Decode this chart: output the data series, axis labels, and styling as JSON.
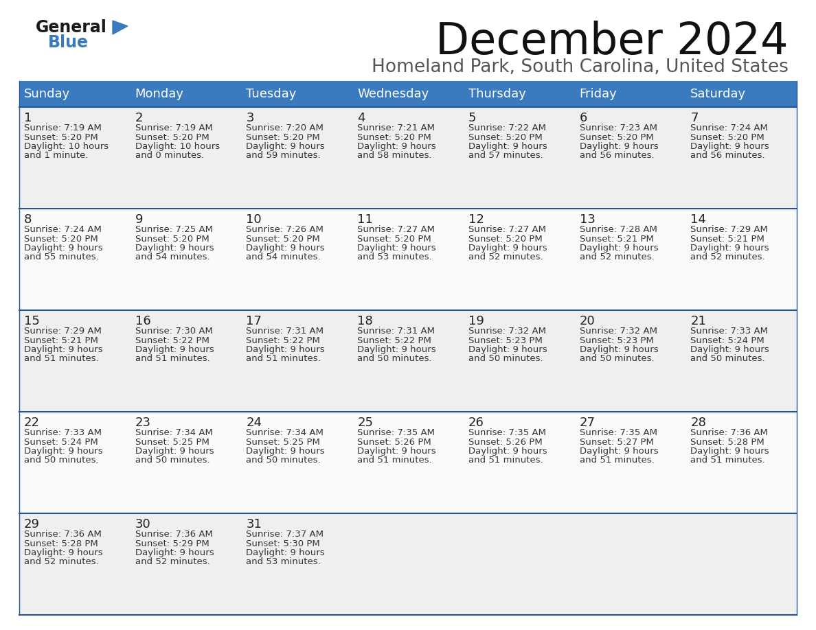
{
  "title": "December 2024",
  "subtitle": "Homeland Park, South Carolina, United States",
  "header_bg_color": "#3A7BBF",
  "header_text_color": "#FFFFFF",
  "cell_bg_color_odd": "#EFEFEF",
  "cell_bg_color_even": "#FAFAFA",
  "row_line_color": "#2255A0",
  "days_of_week": [
    "Sunday",
    "Monday",
    "Tuesday",
    "Wednesday",
    "Thursday",
    "Friday",
    "Saturday"
  ],
  "calendar_data": [
    [
      {
        "day": 1,
        "sunrise": "7:19 AM",
        "sunset": "5:20 PM",
        "daylight_hours": 10,
        "daylight_minutes": 1
      },
      {
        "day": 2,
        "sunrise": "7:19 AM",
        "sunset": "5:20 PM",
        "daylight_hours": 10,
        "daylight_minutes": 0
      },
      {
        "day": 3,
        "sunrise": "7:20 AM",
        "sunset": "5:20 PM",
        "daylight_hours": 9,
        "daylight_minutes": 59
      },
      {
        "day": 4,
        "sunrise": "7:21 AM",
        "sunset": "5:20 PM",
        "daylight_hours": 9,
        "daylight_minutes": 58
      },
      {
        "day": 5,
        "sunrise": "7:22 AM",
        "sunset": "5:20 PM",
        "daylight_hours": 9,
        "daylight_minutes": 57
      },
      {
        "day": 6,
        "sunrise": "7:23 AM",
        "sunset": "5:20 PM",
        "daylight_hours": 9,
        "daylight_minutes": 56
      },
      {
        "day": 7,
        "sunrise": "7:24 AM",
        "sunset": "5:20 PM",
        "daylight_hours": 9,
        "daylight_minutes": 56
      }
    ],
    [
      {
        "day": 8,
        "sunrise": "7:24 AM",
        "sunset": "5:20 PM",
        "daylight_hours": 9,
        "daylight_minutes": 55
      },
      {
        "day": 9,
        "sunrise": "7:25 AM",
        "sunset": "5:20 PM",
        "daylight_hours": 9,
        "daylight_minutes": 54
      },
      {
        "day": 10,
        "sunrise": "7:26 AM",
        "sunset": "5:20 PM",
        "daylight_hours": 9,
        "daylight_minutes": 54
      },
      {
        "day": 11,
        "sunrise": "7:27 AM",
        "sunset": "5:20 PM",
        "daylight_hours": 9,
        "daylight_minutes": 53
      },
      {
        "day": 12,
        "sunrise": "7:27 AM",
        "sunset": "5:20 PM",
        "daylight_hours": 9,
        "daylight_minutes": 52
      },
      {
        "day": 13,
        "sunrise": "7:28 AM",
        "sunset": "5:21 PM",
        "daylight_hours": 9,
        "daylight_minutes": 52
      },
      {
        "day": 14,
        "sunrise": "7:29 AM",
        "sunset": "5:21 PM",
        "daylight_hours": 9,
        "daylight_minutes": 52
      }
    ],
    [
      {
        "day": 15,
        "sunrise": "7:29 AM",
        "sunset": "5:21 PM",
        "daylight_hours": 9,
        "daylight_minutes": 51
      },
      {
        "day": 16,
        "sunrise": "7:30 AM",
        "sunset": "5:22 PM",
        "daylight_hours": 9,
        "daylight_minutes": 51
      },
      {
        "day": 17,
        "sunrise": "7:31 AM",
        "sunset": "5:22 PM",
        "daylight_hours": 9,
        "daylight_minutes": 51
      },
      {
        "day": 18,
        "sunrise": "7:31 AM",
        "sunset": "5:22 PM",
        "daylight_hours": 9,
        "daylight_minutes": 50
      },
      {
        "day": 19,
        "sunrise": "7:32 AM",
        "sunset": "5:23 PM",
        "daylight_hours": 9,
        "daylight_minutes": 50
      },
      {
        "day": 20,
        "sunrise": "7:32 AM",
        "sunset": "5:23 PM",
        "daylight_hours": 9,
        "daylight_minutes": 50
      },
      {
        "day": 21,
        "sunrise": "7:33 AM",
        "sunset": "5:24 PM",
        "daylight_hours": 9,
        "daylight_minutes": 50
      }
    ],
    [
      {
        "day": 22,
        "sunrise": "7:33 AM",
        "sunset": "5:24 PM",
        "daylight_hours": 9,
        "daylight_minutes": 50
      },
      {
        "day": 23,
        "sunrise": "7:34 AM",
        "sunset": "5:25 PM",
        "daylight_hours": 9,
        "daylight_minutes": 50
      },
      {
        "day": 24,
        "sunrise": "7:34 AM",
        "sunset": "5:25 PM",
        "daylight_hours": 9,
        "daylight_minutes": 50
      },
      {
        "day": 25,
        "sunrise": "7:35 AM",
        "sunset": "5:26 PM",
        "daylight_hours": 9,
        "daylight_minutes": 51
      },
      {
        "day": 26,
        "sunrise": "7:35 AM",
        "sunset": "5:26 PM",
        "daylight_hours": 9,
        "daylight_minutes": 51
      },
      {
        "day": 27,
        "sunrise": "7:35 AM",
        "sunset": "5:27 PM",
        "daylight_hours": 9,
        "daylight_minutes": 51
      },
      {
        "day": 28,
        "sunrise": "7:36 AM",
        "sunset": "5:28 PM",
        "daylight_hours": 9,
        "daylight_minutes": 51
      }
    ],
    [
      {
        "day": 29,
        "sunrise": "7:36 AM",
        "sunset": "5:28 PM",
        "daylight_hours": 9,
        "daylight_minutes": 52
      },
      {
        "day": 30,
        "sunrise": "7:36 AM",
        "sunset": "5:29 PM",
        "daylight_hours": 9,
        "daylight_minutes": 52
      },
      {
        "day": 31,
        "sunrise": "7:37 AM",
        "sunset": "5:30 PM",
        "daylight_hours": 9,
        "daylight_minutes": 53
      },
      null,
      null,
      null,
      null
    ]
  ],
  "logo_color1": "#1a1a1a",
  "logo_color2": "#3A7BBF",
  "logo_triangle_color": "#3A7BBF",
  "title_fontsize": 46,
  "subtitle_fontsize": 19,
  "header_fontsize": 13,
  "day_num_fontsize": 13,
  "cell_text_fontsize": 9.5
}
